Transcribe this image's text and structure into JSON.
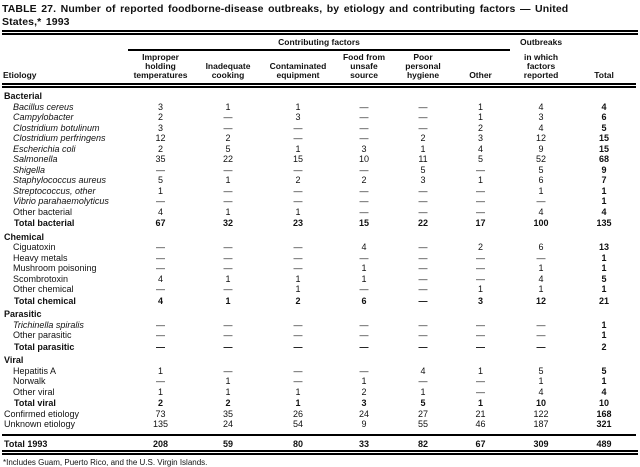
{
  "title": "TABLE 27. Number of reported foodborne-disease outbreaks, by etiology and contributing factors — United\nStates,* 1993",
  "header": {
    "etiology": "Etiology",
    "contributing_factors": "Contributing factors",
    "factor_columns": [
      "Improper\nholding\ntemperatures",
      "Inadequate\ncooking",
      "Contaminated\nequipment",
      "Food from\nunsafe\nsource",
      "Poor\npersonal\nhygiene",
      "Other"
    ],
    "outbreaks_line1": "Outbreaks",
    "outbreaks_rest": "in which\nfactors\nreported",
    "total": "Total"
  },
  "table": {
    "rows": [
      {
        "type": "section",
        "label": "Bacterial"
      },
      {
        "type": "data",
        "italic": true,
        "label": "Bacillus cereus",
        "values": [
          "3",
          "1",
          "1",
          "—",
          "—",
          "1",
          "4",
          "4"
        ]
      },
      {
        "type": "data",
        "italic": true,
        "label": "Campylobacter",
        "values": [
          "2",
          "—",
          "3",
          "—",
          "—",
          "1",
          "3",
          "6"
        ]
      },
      {
        "type": "data",
        "italic": true,
        "label": "Clostridium botulinum",
        "values": [
          "3",
          "—",
          "—",
          "—",
          "—",
          "2",
          "4",
          "5"
        ]
      },
      {
        "type": "data",
        "italic": true,
        "label": "Clostridium perfringens",
        "values": [
          "12",
          "2",
          "—",
          "—",
          "2",
          "3",
          "12",
          "15"
        ]
      },
      {
        "type": "data",
        "italic": true,
        "label": "Escherichia coli",
        "values": [
          "2",
          "5",
          "1",
          "3",
          "1",
          "4",
          "9",
          "15"
        ]
      },
      {
        "type": "data",
        "italic": true,
        "label": "Salmonella",
        "values": [
          "35",
          "22",
          "15",
          "10",
          "11",
          "5",
          "52",
          "68"
        ]
      },
      {
        "type": "data",
        "italic": true,
        "label": "Shigella",
        "values": [
          "—",
          "—",
          "—",
          "—",
          "5",
          "—",
          "5",
          "9"
        ]
      },
      {
        "type": "data",
        "italic": true,
        "label": "Staphylococcus aureus",
        "values": [
          "5",
          "1",
          "2",
          "2",
          "3",
          "1",
          "6",
          "7"
        ]
      },
      {
        "type": "data",
        "italic": true,
        "label": "Streptococcus, other",
        "values": [
          "1",
          "—",
          "—",
          "—",
          "—",
          "—",
          "1",
          "1"
        ]
      },
      {
        "type": "data",
        "italic": true,
        "label": "Vibrio parahaemolyticus",
        "values": [
          "—",
          "—",
          "—",
          "—",
          "—",
          "—",
          "—",
          "1"
        ]
      },
      {
        "type": "data",
        "italic": false,
        "label": "Other bacterial",
        "values": [
          "4",
          "1",
          "1",
          "—",
          "—",
          "—",
          "4",
          "4"
        ]
      },
      {
        "type": "total",
        "label": "Total bacterial",
        "values": [
          "67",
          "32",
          "23",
          "15",
          "22",
          "17",
          "100",
          "135"
        ]
      },
      {
        "type": "section",
        "label": "Chemical"
      },
      {
        "type": "data",
        "italic": false,
        "label": "Ciguatoxin",
        "values": [
          "—",
          "—",
          "—",
          "4",
          "—",
          "2",
          "6",
          "13"
        ]
      },
      {
        "type": "data",
        "italic": false,
        "label": "Heavy metals",
        "values": [
          "—",
          "—",
          "—",
          "—",
          "—",
          "—",
          "—",
          "1"
        ]
      },
      {
        "type": "data",
        "italic": false,
        "label": "Mushroom poisoning",
        "values": [
          "—",
          "—",
          "—",
          "1",
          "—",
          "—",
          "1",
          "1"
        ]
      },
      {
        "type": "data",
        "italic": false,
        "label": "Scombrotoxin",
        "values": [
          "4",
          "1",
          "1",
          "1",
          "—",
          "—",
          "4",
          "5"
        ]
      },
      {
        "type": "data",
        "italic": false,
        "label": "Other chemical",
        "values": [
          "—",
          "—",
          "1",
          "—",
          "—",
          "1",
          "1",
          "1"
        ]
      },
      {
        "type": "total",
        "label": "Total chemical",
        "values": [
          "4",
          "1",
          "2",
          "6",
          "—",
          "3",
          "12",
          "21"
        ]
      },
      {
        "type": "section",
        "label": "Parasitic"
      },
      {
        "type": "data",
        "italic": true,
        "label": "Trichinella spiralis",
        "values": [
          "—",
          "—",
          "—",
          "—",
          "—",
          "—",
          "—",
          "1"
        ]
      },
      {
        "type": "data",
        "italic": false,
        "label": "Other parasitic",
        "values": [
          "—",
          "—",
          "—",
          "—",
          "—",
          "—",
          "—",
          "1"
        ]
      },
      {
        "type": "total",
        "label": "Total parasitic",
        "values": [
          "—",
          "—",
          "—",
          "—",
          "—",
          "—",
          "—",
          "2"
        ]
      },
      {
        "type": "section",
        "label": "Viral"
      },
      {
        "type": "data",
        "italic": false,
        "label": "Hepatitis A",
        "values": [
          "1",
          "—",
          "—",
          "—",
          "4",
          "1",
          "5",
          "5"
        ]
      },
      {
        "type": "data",
        "italic": false,
        "label": "Norwalk",
        "values": [
          "—",
          "1",
          "—",
          "1",
          "—",
          "—",
          "1",
          "1"
        ]
      },
      {
        "type": "data",
        "italic": false,
        "label": "Other viral",
        "values": [
          "1",
          "1",
          "1",
          "2",
          "1",
          "—",
          "4",
          "4"
        ]
      },
      {
        "type": "total",
        "label": "Total viral",
        "values": [
          "2",
          "2",
          "1",
          "3",
          "5",
          "1",
          "10",
          "10"
        ]
      },
      {
        "type": "summary",
        "label": "Confirmed etiology",
        "values": [
          "73",
          "35",
          "26",
          "24",
          "27",
          "21",
          "122",
          "168"
        ]
      },
      {
        "type": "summary",
        "label": "Unknown etiology",
        "values": [
          "135",
          "24",
          "54",
          "9",
          "55",
          "46",
          "187",
          "321"
        ]
      },
      {
        "type": "grandtotal",
        "label": "Total 1993",
        "values": [
          "208",
          "59",
          "80",
          "33",
          "82",
          "67",
          "309",
          "489"
        ]
      }
    ]
  },
  "footnote": "*Includes Guam, Puerto Rico, and the U.S. Virgin Islands.",
  "colors": {
    "text": "#000000",
    "background": "#ffffff"
  }
}
